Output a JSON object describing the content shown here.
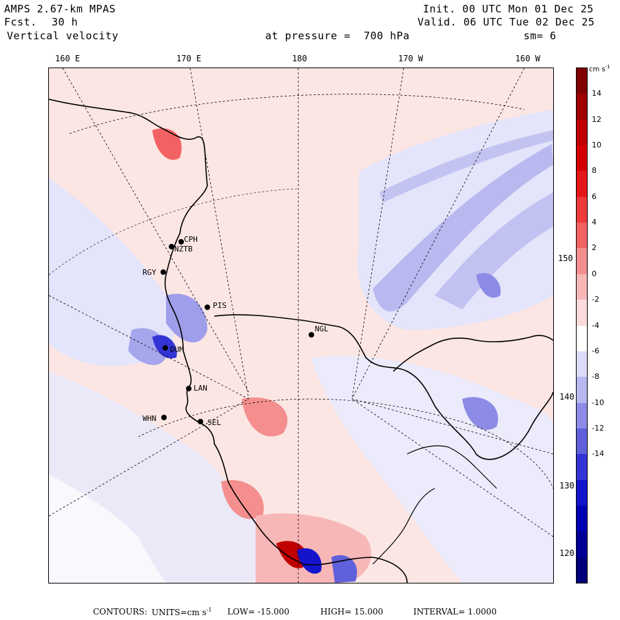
{
  "header": {
    "model": "AMPS 2.67-km MPAS",
    "forecast_label": "Fcst.",
    "forecast_value": "30 h",
    "field": "Vertical velocity",
    "init": "Init. 00 UTC Mon 01 Dec 25",
    "valid": "Valid. 06 UTC Tue 02 Dec 25",
    "level": "at pressure =  700 hPa",
    "smoothing": "sm= 6"
  },
  "longitude_ticks": [
    "160 E",
    "170 E",
    "180",
    "170 W",
    "160 W"
  ],
  "latitude_labels": [
    "150 W",
    "140 W",
    "130 W",
    "120 W"
  ],
  "stations": [
    "CPH",
    "NZTB",
    "RGY",
    "PIS",
    "NGL",
    "LAN",
    "WHN",
    "SEL",
    "DUM"
  ],
  "colorbar": {
    "units_label": "cm s",
    "units_exp": "-1",
    "levels": [
      14,
      12,
      10,
      8,
      6,
      4,
      2,
      0,
      -2,
      -4,
      -6,
      -8,
      -10,
      -12,
      -14
    ],
    "colors": [
      "#800000",
      "#a00000",
      "#bf0000",
      "#d40000",
      "#e41818",
      "#ee3a3a",
      "#f26262",
      "#f58e8e",
      "#f8b7b7",
      "#fbdbdb",
      "#ffffff",
      "#dcdcf8",
      "#b8b8f0",
      "#8c8ce6",
      "#6060dc",
      "#3434d6",
      "#1414cc",
      "#0000b4",
      "#000096",
      "#00007a"
    ]
  },
  "footer": {
    "contours_label": "CONTOURS:",
    "units": "UNITS=cm s",
    "units_exp": "-1",
    "low": "LOW= -15.000",
    "high": "HIGH= 15.000",
    "interval": "INTERVAL= 1.0000"
  }
}
